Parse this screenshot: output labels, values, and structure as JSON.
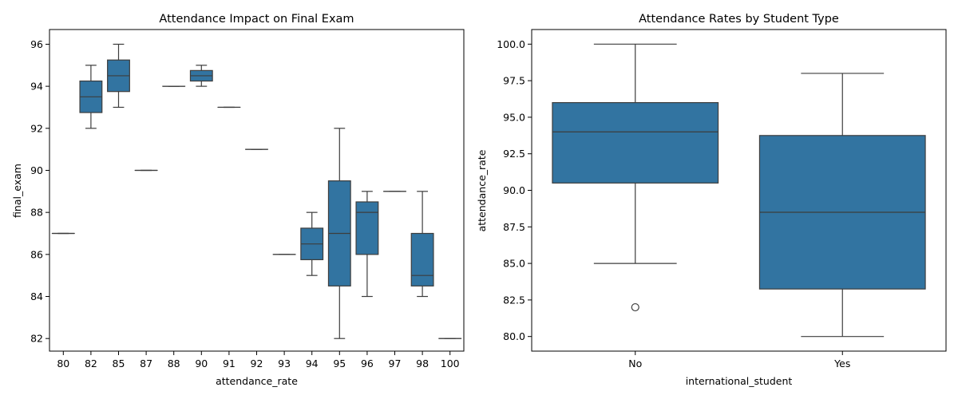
{
  "colors": {
    "box_fill": "#3274a1",
    "line": "#3d3d3d",
    "axis": "#000000"
  },
  "chart_data": [
    {
      "type": "box",
      "title": "Attendance Impact on Final Exam",
      "xlabel": "attendance_rate",
      "ylabel": "final_exam",
      "ylim": [
        81.4,
        96.7
      ],
      "yticks": [
        82,
        84,
        86,
        88,
        90,
        92,
        94,
        96
      ],
      "ytick_labels": [
        "82",
        "84",
        "86",
        "88",
        "90",
        "92",
        "94",
        "96"
      ],
      "grid": false,
      "categories": [
        "80",
        "82",
        "85",
        "87",
        "88",
        "90",
        "91",
        "92",
        "93",
        "94",
        "95",
        "96",
        "97",
        "98",
        "100"
      ],
      "boxes": [
        {
          "category": "80",
          "whislo": 87,
          "q1": 87,
          "med": 87,
          "q3": 87,
          "whishi": 87,
          "fliers": []
        },
        {
          "category": "82",
          "whislo": 92,
          "q1": 92.75,
          "med": 93.5,
          "q3": 94.25,
          "whishi": 95,
          "fliers": []
        },
        {
          "category": "85",
          "whislo": 93,
          "q1": 93.75,
          "med": 94.5,
          "q3": 95.25,
          "whishi": 96,
          "fliers": []
        },
        {
          "category": "87",
          "whislo": 90,
          "q1": 90,
          "med": 90,
          "q3": 90,
          "whishi": 90,
          "fliers": []
        },
        {
          "category": "88",
          "whislo": 94,
          "q1": 94,
          "med": 94,
          "q3": 94,
          "whishi": 94,
          "fliers": []
        },
        {
          "category": "90",
          "whislo": 94,
          "q1": 94.25,
          "med": 94.5,
          "q3": 94.75,
          "whishi": 95,
          "fliers": []
        },
        {
          "category": "91",
          "whislo": 93,
          "q1": 93,
          "med": 93,
          "q3": 93,
          "whishi": 93,
          "fliers": []
        },
        {
          "category": "92",
          "whislo": 91,
          "q1": 91,
          "med": 91,
          "q3": 91,
          "whishi": 91,
          "fliers": []
        },
        {
          "category": "93",
          "whislo": 86,
          "q1": 86,
          "med": 86,
          "q3": 86,
          "whishi": 86,
          "fliers": []
        },
        {
          "category": "94",
          "whislo": 85,
          "q1": 85.75,
          "med": 86.5,
          "q3": 87.25,
          "whishi": 88,
          "fliers": []
        },
        {
          "category": "95",
          "whislo": 82,
          "q1": 84.5,
          "med": 87,
          "q3": 89.5,
          "whishi": 92,
          "fliers": []
        },
        {
          "category": "96",
          "whislo": 84,
          "q1": 86,
          "med": 88,
          "q3": 88.5,
          "whishi": 89,
          "fliers": []
        },
        {
          "category": "97",
          "whislo": 89,
          "q1": 89,
          "med": 89,
          "q3": 89,
          "whishi": 89,
          "fliers": []
        },
        {
          "category": "98",
          "whislo": 84,
          "q1": 84.5,
          "med": 85,
          "q3": 87,
          "whishi": 89,
          "fliers": []
        },
        {
          "category": "100",
          "whislo": 82,
          "q1": 82,
          "med": 82,
          "q3": 82,
          "whishi": 82,
          "fliers": []
        }
      ]
    },
    {
      "type": "box",
      "title": "Attendance Rates by Student Type",
      "xlabel": "international_student",
      "ylabel": "attendance_rate",
      "ylim": [
        79.0,
        101.0
      ],
      "yticks": [
        80.0,
        82.5,
        85.0,
        87.5,
        90.0,
        92.5,
        95.0,
        97.5,
        100.0
      ],
      "ytick_labels": [
        "80.0",
        "82.5",
        "85.0",
        "87.5",
        "90.0",
        "92.5",
        "95.0",
        "97.5",
        "100.0"
      ],
      "grid": false,
      "categories": [
        "No",
        "Yes"
      ],
      "boxes": [
        {
          "category": "No",
          "whislo": 85,
          "q1": 90.5,
          "med": 94,
          "q3": 96,
          "whishi": 100,
          "fliers": [
            82
          ]
        },
        {
          "category": "Yes",
          "whislo": 80,
          "q1": 83.25,
          "med": 88.5,
          "q3": 93.75,
          "whishi": 98,
          "fliers": []
        }
      ]
    }
  ]
}
